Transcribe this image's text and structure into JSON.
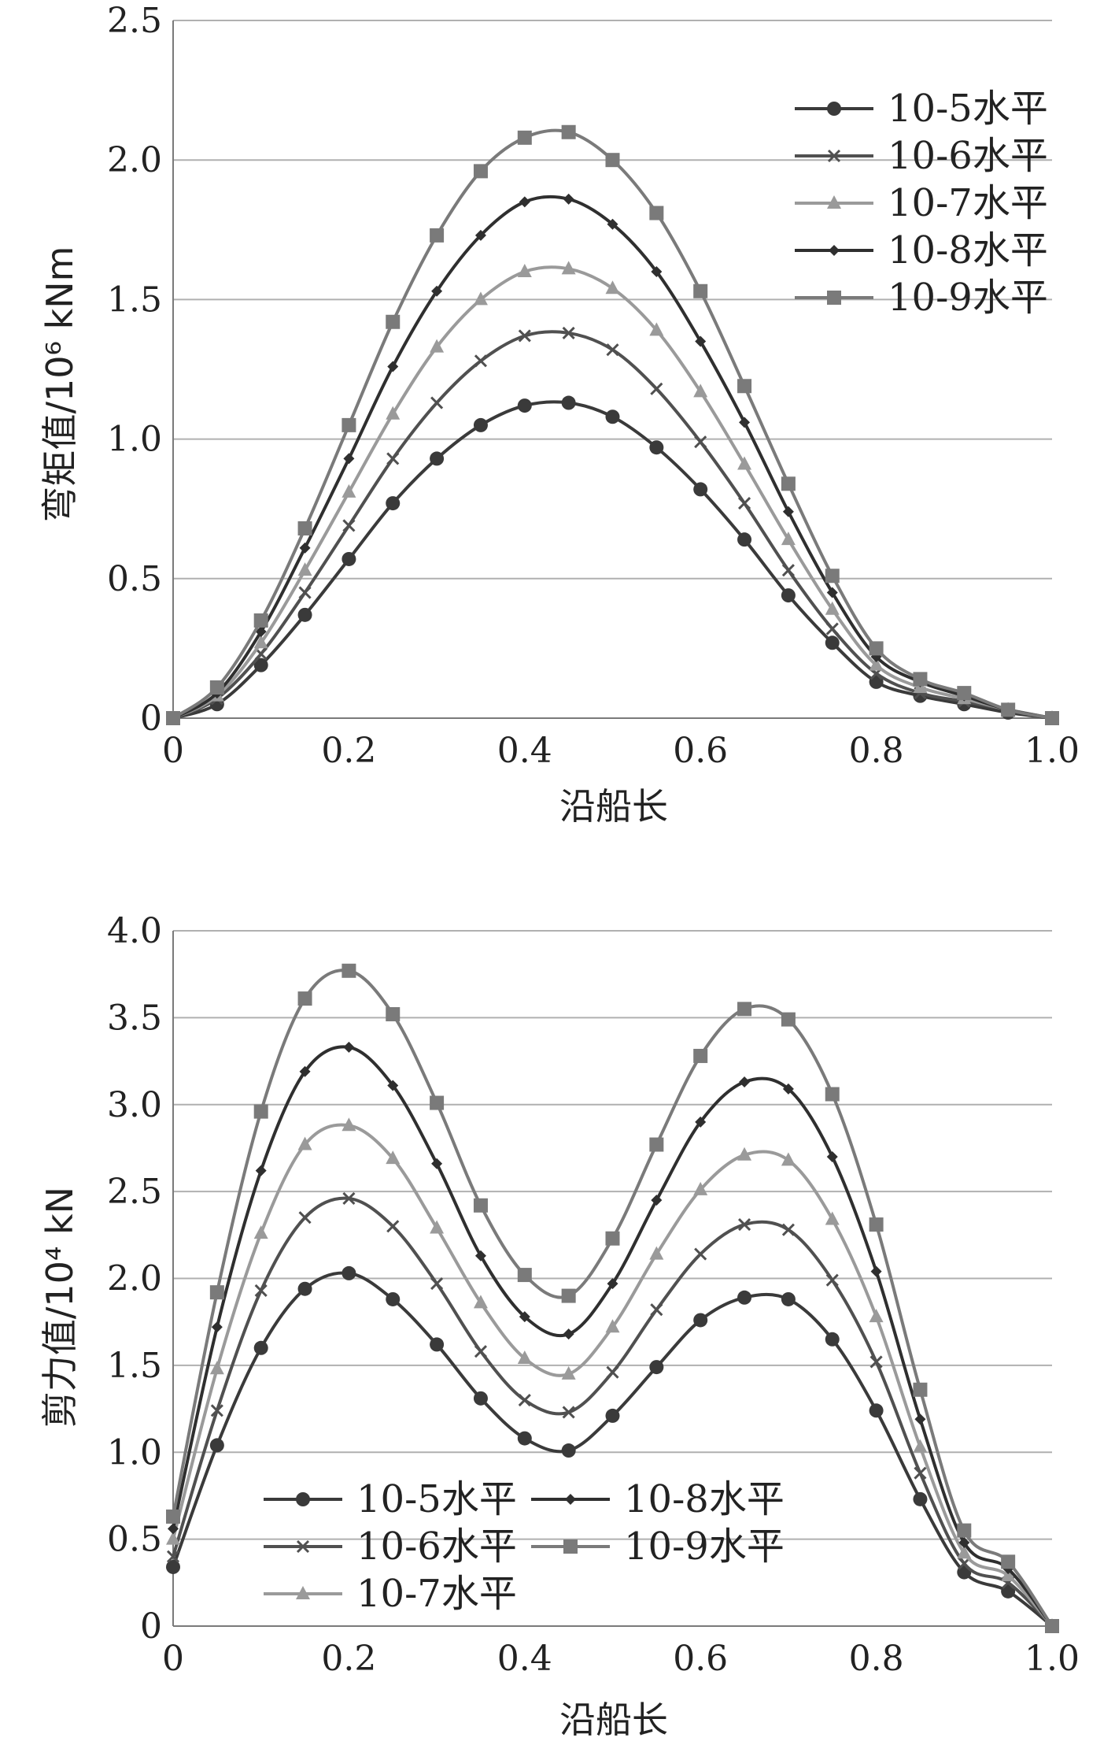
{
  "chart_data": [
    {
      "type": "line",
      "title": "",
      "xlabel": "沿船长",
      "ylabel": "弯矩值/10⁶ kNm",
      "xlim": [
        0,
        1.0
      ],
      "ylim": [
        0,
        2.5
      ],
      "x_ticks": [
        "0",
        "0.2",
        "0.4",
        "0.6",
        "0.8",
        "1.0"
      ],
      "y_ticks": [
        "0",
        "0.5",
        "1.0",
        "1.5",
        "2.0",
        "2.5"
      ],
      "grid": true,
      "legend_position": "top-right",
      "x": [
        0,
        0.05,
        0.1,
        0.15,
        0.2,
        0.25,
        0.3,
        0.35,
        0.4,
        0.45,
        0.5,
        0.55,
        0.6,
        0.65,
        0.7,
        0.75,
        0.8,
        0.85,
        0.9,
        0.95,
        1.0
      ],
      "series": [
        {
          "name": "10-5水平",
          "color": "#3a3a3a",
          "marker": "circle",
          "values": [
            0,
            0.05,
            0.19,
            0.37,
            0.57,
            0.77,
            0.93,
            1.05,
            1.12,
            1.13,
            1.08,
            0.97,
            0.82,
            0.64,
            0.44,
            0.27,
            0.13,
            0.08,
            0.05,
            0.02,
            0
          ]
        },
        {
          "name": "10-6水平",
          "color": "#505050",
          "marker": "x",
          "values": [
            0,
            0.07,
            0.23,
            0.45,
            0.69,
            0.93,
            1.13,
            1.28,
            1.37,
            1.38,
            1.32,
            1.18,
            0.99,
            0.77,
            0.53,
            0.32,
            0.16,
            0.09,
            0.06,
            0.03,
            0
          ]
        },
        {
          "name": "10-7水平",
          "color": "#9a9a9a",
          "marker": "triangle",
          "values": [
            0,
            0.08,
            0.27,
            0.53,
            0.81,
            1.09,
            1.33,
            1.5,
            1.6,
            1.61,
            1.54,
            1.39,
            1.17,
            0.91,
            0.64,
            0.39,
            0.19,
            0.11,
            0.07,
            0.03,
            0
          ]
        },
        {
          "name": "10-8水平",
          "color": "#2f2f2f",
          "marker": "diamond",
          "values": [
            0,
            0.09,
            0.31,
            0.61,
            0.93,
            1.26,
            1.53,
            1.73,
            1.85,
            1.86,
            1.77,
            1.6,
            1.35,
            1.06,
            0.74,
            0.45,
            0.22,
            0.13,
            0.08,
            0.03,
            0
          ]
        },
        {
          "name": "10-9水平",
          "color": "#7a7a7a",
          "marker": "square",
          "values": [
            0,
            0.11,
            0.35,
            0.68,
            1.05,
            1.42,
            1.73,
            1.96,
            2.08,
            2.1,
            2.0,
            1.81,
            1.53,
            1.19,
            0.84,
            0.51,
            0.25,
            0.14,
            0.09,
            0.03,
            0
          ]
        }
      ]
    },
    {
      "type": "line",
      "title": "",
      "xlabel": "沿船长",
      "ylabel": "剪力值/10⁴ kN",
      "xlim": [
        0,
        1.0
      ],
      "ylim": [
        0,
        4.0
      ],
      "x_ticks": [
        "0",
        "0.2",
        "0.4",
        "0.6",
        "0.8",
        "1.0"
      ],
      "y_ticks": [
        "0",
        "0.5",
        "1.0",
        "1.5",
        "2.0",
        "2.5",
        "3.0",
        "3.5",
        "4.0"
      ],
      "grid": true,
      "legend_position": "bottom-left",
      "x": [
        0,
        0.05,
        0.1,
        0.15,
        0.2,
        0.25,
        0.3,
        0.35,
        0.4,
        0.45,
        0.5,
        0.55,
        0.6,
        0.65,
        0.7,
        0.75,
        0.8,
        0.85,
        0.9,
        0.95,
        1.0
      ],
      "series": [
        {
          "name": "10-5水平",
          "color": "#3a3a3a",
          "marker": "circle",
          "values": [
            0.34,
            1.04,
            1.6,
            1.94,
            2.03,
            1.88,
            1.62,
            1.31,
            1.08,
            1.01,
            1.21,
            1.49,
            1.76,
            1.89,
            1.88,
            1.65,
            1.24,
            0.73,
            0.31,
            0.2,
            0
          ]
        },
        {
          "name": "10-6水平",
          "color": "#505050",
          "marker": "x",
          "values": [
            0.4,
            1.24,
            1.93,
            2.35,
            2.46,
            2.3,
            1.97,
            1.58,
            1.3,
            1.23,
            1.46,
            1.82,
            2.14,
            2.31,
            2.28,
            1.99,
            1.52,
            0.88,
            0.36,
            0.25,
            0
          ]
        },
        {
          "name": "10-7水平",
          "color": "#9a9a9a",
          "marker": "triangle",
          "values": [
            0.5,
            1.48,
            2.26,
            2.77,
            2.88,
            2.69,
            2.29,
            1.86,
            1.54,
            1.45,
            1.72,
            2.14,
            2.51,
            2.71,
            2.68,
            2.34,
            1.78,
            1.03,
            0.42,
            0.29,
            0
          ]
        },
        {
          "name": "10-8水平",
          "color": "#2f2f2f",
          "marker": "diamond",
          "values": [
            0.56,
            1.72,
            2.62,
            3.19,
            3.33,
            3.11,
            2.66,
            2.13,
            1.78,
            1.68,
            1.97,
            2.45,
            2.9,
            3.13,
            3.09,
            2.7,
            2.04,
            1.19,
            0.48,
            0.33,
            0
          ]
        },
        {
          "name": "10-9水平",
          "color": "#7a7a7a",
          "marker": "square",
          "values": [
            0.63,
            1.92,
            2.96,
            3.61,
            3.77,
            3.52,
            3.01,
            2.42,
            2.02,
            1.9,
            2.23,
            2.77,
            3.28,
            3.55,
            3.49,
            3.06,
            2.31,
            1.36,
            0.55,
            0.37,
            0
          ]
        }
      ]
    }
  ]
}
